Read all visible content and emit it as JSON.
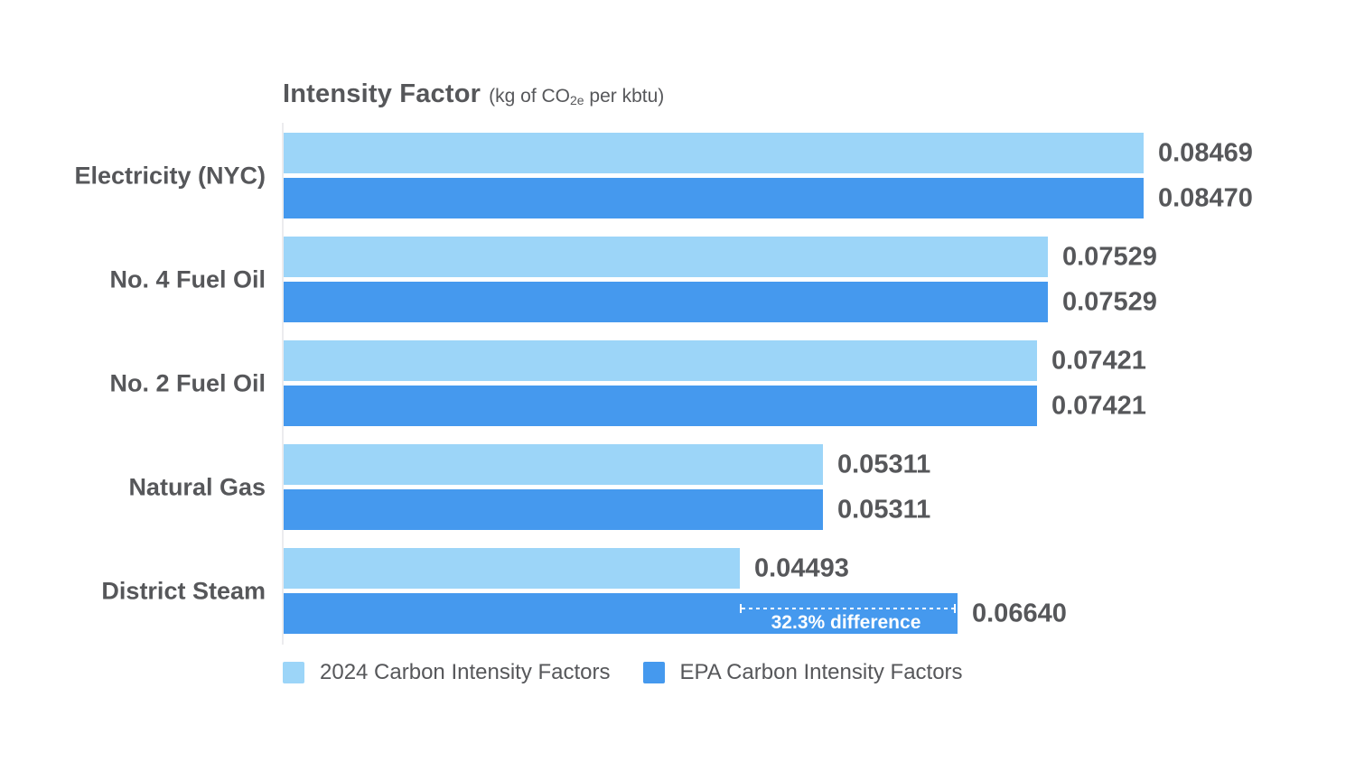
{
  "title": {
    "main": "Intensity Factor",
    "unit_pre": "(kg of CO",
    "unit_sub": "2e",
    "unit_post": " per kbtu)"
  },
  "chart_data": {
    "type": "bar",
    "orientation": "horizontal",
    "title": "Intensity Factor (kg of CO2e per kbtu)",
    "categories": [
      "Electricity (NYC)",
      "No. 4 Fuel Oil",
      "No. 2 Fuel Oil",
      "Natural Gas",
      "District Steam"
    ],
    "series": [
      {
        "name": "2024 Carbon Intensity Factors",
        "color": "#9cd5f8",
        "values": [
          0.08469,
          0.07529,
          0.07421,
          0.05311,
          0.04493
        ],
        "labels": [
          "0.08469",
          "0.07529",
          "0.07421",
          "0.05311",
          "0.04493"
        ]
      },
      {
        "name": "EPA Carbon Intensity Factors",
        "color": "#4599ee",
        "values": [
          0.0847,
          0.07529,
          0.07421,
          0.05311,
          0.0664
        ],
        "labels": [
          "0.08470",
          "0.07529",
          "0.07421",
          "0.05311",
          "0.06640"
        ]
      }
    ],
    "xlim": [
      0,
      0.0847
    ],
    "grid": false,
    "legend_position": "bottom",
    "value_text_color": "#56575a",
    "annotation": {
      "text": "32.3% difference",
      "category_index": 4,
      "series_index": 1,
      "from_value": 0.04493,
      "to_value": 0.0664
    }
  }
}
